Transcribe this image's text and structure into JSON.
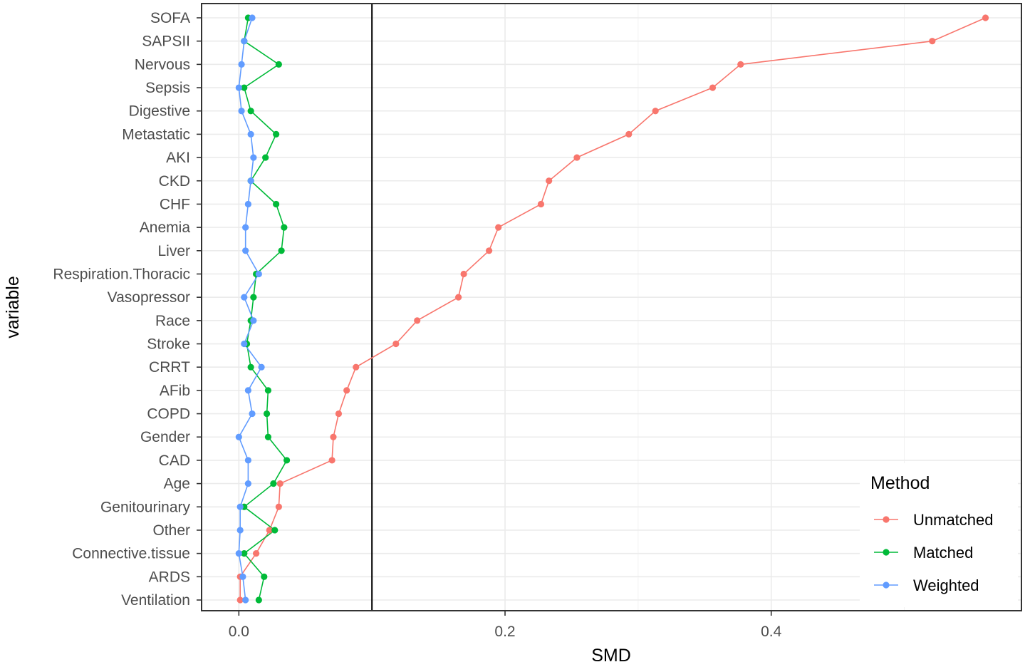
{
  "chart_data": {
    "type": "line",
    "xlabel": "SMD",
    "ylabel": "variable",
    "xlim": [
      -0.028,
      0.588
    ],
    "x_ticks": [
      0.0,
      0.2,
      0.4
    ],
    "x_tick_labels": [
      "0.0",
      "0.2",
      "0.4"
    ],
    "reference_line_x": 0.1,
    "grid": true,
    "legend_position": "bottom-right",
    "categories": [
      "SOFA",
      "SAPSII",
      "Nervous",
      "Sepsis",
      "Digestive",
      "Metastatic",
      "AKI",
      "CKD",
      "CHF",
      "Anemia",
      "Liver",
      "Respiration.Thoracic",
      "Vasopressor",
      "Race",
      "Stroke",
      "CRRT",
      "AFib",
      "COPD",
      "Gender",
      "CAD",
      "Age",
      "Genitourinary",
      "Other",
      "Connective.tissue",
      "ARDS",
      "Ventilation"
    ],
    "series": [
      {
        "name": "Unmatched",
        "color": "#F8766D",
        "values": [
          0.561,
          0.521,
          0.377,
          0.356,
          0.313,
          0.293,
          0.254,
          0.233,
          0.227,
          0.195,
          0.188,
          0.169,
          0.165,
          0.134,
          0.118,
          0.088,
          0.081,
          0.075,
          0.071,
          0.07,
          0.031,
          0.03,
          0.023,
          0.013,
          0.001,
          0.001
        ]
      },
      {
        "name": "Matched",
        "color": "#00BA38",
        "values": [
          0.007,
          0.004,
          0.03,
          0.004,
          0.009,
          0.028,
          0.02,
          0.009,
          0.028,
          0.034,
          0.032,
          0.013,
          0.011,
          0.009,
          0.006,
          0.009,
          0.022,
          0.021,
          0.022,
          0.036,
          0.026,
          0.004,
          0.027,
          0.004,
          0.019,
          0.015
        ]
      },
      {
        "name": "Weighted",
        "color": "#619CFF",
        "values": [
          0.01,
          0.004,
          0.002,
          0.0,
          0.002,
          0.009,
          0.011,
          0.009,
          0.007,
          0.005,
          0.005,
          0.015,
          0.004,
          0.011,
          0.004,
          0.017,
          0.007,
          0.01,
          0.0,
          0.007,
          0.007,
          0.001,
          0.001,
          0.0,
          0.003,
          0.005
        ]
      }
    ]
  },
  "legend": {
    "title": "Method",
    "items": [
      "Unmatched",
      "Matched",
      "Weighted"
    ]
  }
}
